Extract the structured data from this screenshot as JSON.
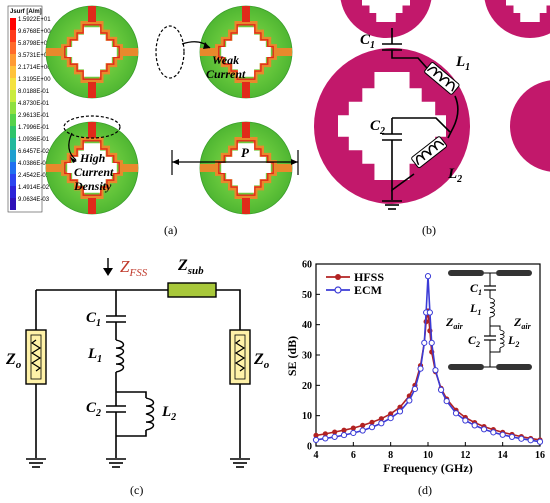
{
  "panel_labels": {
    "a": "(a)",
    "b": "(b)",
    "c": "(c)",
    "d": "(d)"
  },
  "colors": {
    "magenta": "#c2186b",
    "field_green": "#5fc43a",
    "field_orange": "#e8892c",
    "field_red": "#e02a1a",
    "hfss": "#b22222",
    "ecm": "#3b3bd6",
    "resistor_fill": "#fff2a8",
    "zsub_fill": "#a8c83a"
  },
  "panel_a": {
    "legend_title": "Jsurf [A/m]",
    "legend_values": [
      "1.5922E+01",
      "9.6768E+00",
      "5.8798E+00",
      "3.5731E+00",
      "2.1714E+00",
      "1.3195E+00",
      "8.0188E-01",
      "4.8730E-01",
      "2.9613E-01",
      "1.7996E-01",
      "1.0936E-01",
      "6.6457E-02",
      "4.0386E-02",
      "2.4542E-02",
      "1.4914E-02",
      "9.0634E-03"
    ],
    "legend_colors": [
      "#ff0000",
      "#ff3a1a",
      "#ff6a2a",
      "#ff9a33",
      "#ffc23b",
      "#f4e23f",
      "#c9ec3e",
      "#8fe040",
      "#55d24a",
      "#2fc46a",
      "#22b89c",
      "#1f9fd0",
      "#1f6ff0",
      "#2a44f0",
      "#2b22d8",
      "#2e10b8"
    ],
    "annotation_weak": "Weak Current",
    "annotation_high": "High Current Density",
    "period_label": "P"
  },
  "panel_b": {
    "c1": "C",
    "c1_sub": "1",
    "c2": "C",
    "c2_sub": "2",
    "l1": "L",
    "l1_sub": "1",
    "l2": "L",
    "l2_sub": "2"
  },
  "panel_c": {
    "zfss": "Z",
    "zfss_sub": "FSS",
    "zsub": "Z",
    "zsub_sub": "sub",
    "zo": "Z",
    "zo_sub": "o",
    "c1": "C",
    "c1_sub": "1",
    "l1": "L",
    "l1_sub": "1",
    "c2": "C",
    "c2_sub": "2",
    "l2": "L",
    "l2_sub": "2"
  },
  "chart_data": {
    "type": "line",
    "xlabel": "Frequency (GHz)",
    "ylabel": "SE (dB)",
    "xlim": [
      4,
      16
    ],
    "ylim": [
      0,
      60
    ],
    "xticks": [
      "4",
      "6",
      "8",
      "10",
      "12",
      "14",
      "16"
    ],
    "yticks": [
      "0",
      "10",
      "20",
      "30",
      "40",
      "50",
      "60"
    ],
    "grid": false,
    "legend_position": "top-left",
    "series": [
      {
        "name": "HFSS",
        "color": "#b22222",
        "x": [
          4,
          4.5,
          5,
          5.5,
          6,
          6.5,
          7,
          7.5,
          8,
          8.5,
          9,
          9.3,
          9.6,
          9.8,
          9.9,
          10,
          10.1,
          10.2,
          10.4,
          10.7,
          11,
          11.5,
          12,
          12.5,
          13,
          13.5,
          14,
          14.5,
          15,
          15.5,
          16
        ],
        "values": [
          3.5,
          4.0,
          4.6,
          5.2,
          5.9,
          6.8,
          7.8,
          9.0,
          10.6,
          12.8,
          16.5,
          20.0,
          26.5,
          34.0,
          41.0,
          44.5,
          38.0,
          31.0,
          24.5,
          19.0,
          15.5,
          11.8,
          9.4,
          7.7,
          6.4,
          5.4,
          4.5,
          3.8,
          3.1,
          2.5,
          2.0
        ]
      },
      {
        "name": "ECM",
        "color": "#3b3bd6",
        "x": [
          4,
          4.5,
          5,
          5.5,
          6,
          6.5,
          7,
          7.5,
          8,
          8.5,
          9,
          9.3,
          9.6,
          9.8,
          9.9,
          10,
          10.1,
          10.2,
          10.4,
          10.7,
          11,
          11.5,
          12,
          12.5,
          13,
          13.5,
          14,
          14.5,
          15,
          15.5,
          16
        ],
        "values": [
          2.0,
          2.5,
          3.0,
          3.6,
          4.3,
          5.1,
          6.2,
          7.5,
          9.2,
          11.4,
          15.0,
          18.8,
          25.5,
          34.0,
          44.0,
          56.0,
          44.0,
          34.0,
          25.0,
          18.5,
          14.8,
          10.8,
          8.4,
          6.8,
          5.5,
          4.5,
          3.7,
          3.0,
          2.4,
          1.9,
          1.4
        ]
      }
    ],
    "inset": {
      "c1": "C",
      "c1_sub": "1",
      "l1": "L",
      "l1_sub": "1",
      "c2": "C",
      "c2_sub": "2",
      "l2": "L",
      "l2_sub": "2",
      "zair": "Z",
      "zair_sub": "air"
    }
  }
}
